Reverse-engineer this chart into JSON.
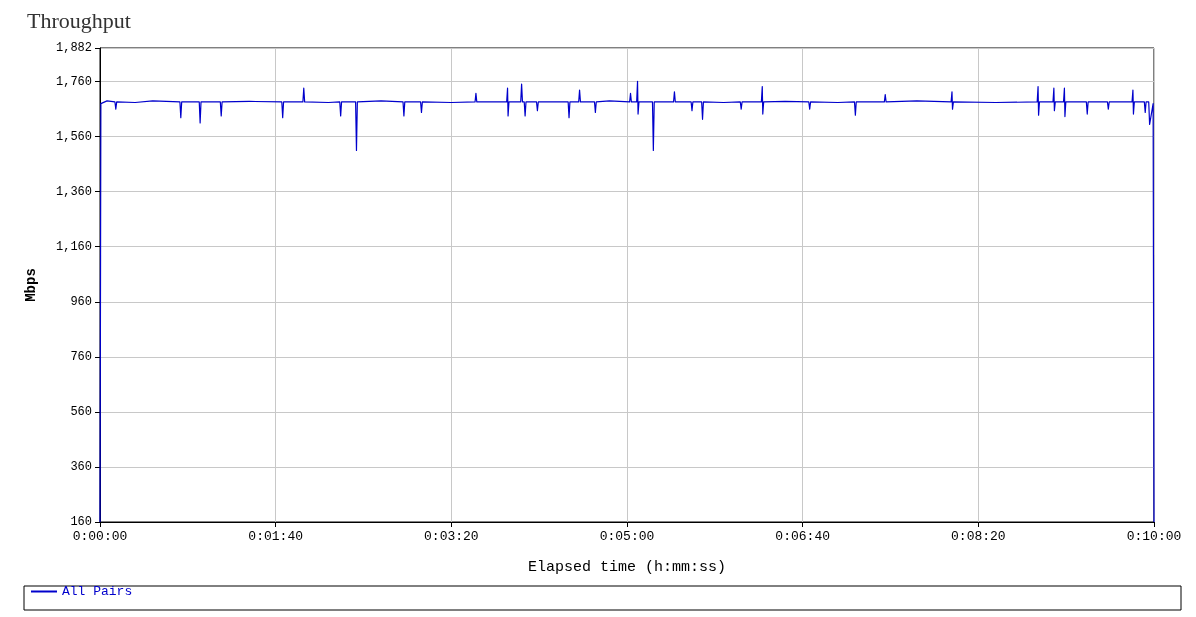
{
  "chart_data": {
    "type": "line",
    "title": "Throughput",
    "xlabel": "Elapsed time (h:mm:ss)",
    "ylabel": "Mbps",
    "x": [
      0,
      0.5,
      4,
      8.5,
      9,
      9.5,
      20,
      30,
      45.5,
      46,
      46.5,
      56.5,
      57,
      57.5,
      68.5,
      69,
      69.5,
      85,
      103.5,
      104,
      104.5,
      115.5,
      116,
      116.5,
      130,
      136.5,
      137,
      137.5,
      145.5,
      146,
      146.5,
      160,
      172.5,
      173,
      173.5,
      182.5,
      183,
      183.5,
      200,
      213.5,
      214,
      214.5,
      231.5,
      232,
      232.3,
      232.8,
      239.5,
      240,
      240.5,
      241.5,
      242,
      242.5,
      248.5,
      249,
      249.5,
      266.5,
      267,
      267.5,
      272.5,
      273,
      273.5,
      281.5,
      282,
      282.5,
      290,
      301.5,
      302,
      302.5,
      305.5,
      306,
      306.3,
      306.8,
      314.5,
      315,
      315.5,
      326.5,
      327,
      327.5,
      336.5,
      337,
      337.5,
      342.5,
      343,
      343.5,
      355,
      364.5,
      365,
      365.5,
      376.5,
      377,
      377.3,
      377.8,
      390,
      403.5,
      404,
      404.5,
      420,
      429.5,
      430,
      430.5,
      446.5,
      447,
      447.5,
      465,
      484.5,
      485,
      485.3,
      485.8,
      510,
      533.5,
      534,
      534.3,
      534.8,
      542.5,
      543,
      543.3,
      543.8,
      548.5,
      549,
      549.3,
      549.8,
      561.5,
      562,
      562.5,
      573.5,
      574,
      574.5,
      587.5,
      588,
      588.3,
      588.8,
      594.5,
      595,
      595.5,
      597,
      597.5,
      599.5,
      600
    ],
    "series": [
      {
        "name": "All Pairs",
        "color": "#0000cc",
        "values": [
          160,
          1680,
          1690,
          1686,
          1660,
          1686,
          1684,
          1690,
          1686,
          1629,
          1686,
          1686,
          1610,
          1686,
          1686,
          1635,
          1686,
          1688,
          1686,
          1629,
          1686,
          1686,
          1736,
          1686,
          1684,
          1686,
          1635,
          1686,
          1686,
          1510,
          1686,
          1690,
          1686,
          1635,
          1686,
          1686,
          1648,
          1686,
          1684,
          1686,
          1717,
          1686,
          1686,
          1736,
          1635,
          1686,
          1686,
          1751,
          1686,
          1686,
          1635,
          1686,
          1686,
          1654,
          1686,
          1686,
          1629,
          1686,
          1686,
          1729,
          1686,
          1686,
          1648,
          1686,
          1690,
          1686,
          1717,
          1686,
          1686,
          1761,
          1642,
          1686,
          1686,
          1510,
          1686,
          1686,
          1723,
          1686,
          1686,
          1654,
          1686,
          1686,
          1623,
          1686,
          1684,
          1686,
          1660,
          1686,
          1686,
          1742,
          1642,
          1686,
          1688,
          1686,
          1660,
          1686,
          1684,
          1686,
          1638,
          1686,
          1686,
          1713,
          1686,
          1690,
          1686,
          1723,
          1660,
          1686,
          1684,
          1686,
          1742,
          1638,
          1686,
          1686,
          1736,
          1654,
          1686,
          1686,
          1736,
          1633,
          1686,
          1686,
          1642,
          1686,
          1686,
          1660,
          1686,
          1686,
          1729,
          1642,
          1686,
          1686,
          1648,
          1686,
          1686,
          1604,
          1680,
          160
        ]
      }
    ],
    "xlim": [
      0,
      600
    ],
    "xticks": [
      {
        "value": 0,
        "label": "0:00:00"
      },
      {
        "value": 100,
        "label": "0:01:40"
      },
      {
        "value": 200,
        "label": "0:03:20"
      },
      {
        "value": 300,
        "label": "0:05:00"
      },
      {
        "value": 400,
        "label": "0:06:40"
      },
      {
        "value": 500,
        "label": "0:08:20"
      },
      {
        "value": 600,
        "label": "0:10:00"
      }
    ],
    "ylim": [
      160,
      1882
    ],
    "yticks": [
      160,
      360,
      560,
      760,
      960,
      {
        "value": 1160,
        "label": "1,160"
      },
      {
        "value": 1360,
        "label": "1,360"
      },
      {
        "value": 1560,
        "label": "1,560"
      },
      {
        "value": 1760,
        "label": "1,760"
      },
      {
        "value": 1882,
        "label": "1,882"
      }
    ],
    "legend": "bottom",
    "grid": true,
    "marker": "none",
    "line_style": "solid"
  }
}
